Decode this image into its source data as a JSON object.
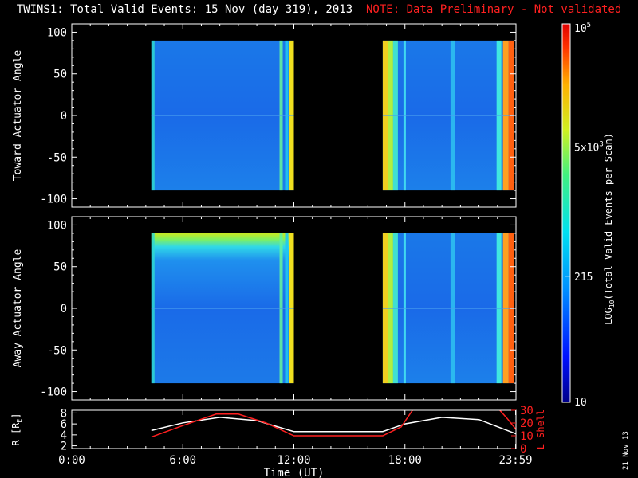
{
  "title": {
    "main": "TWINS1: Total Valid Events: 15 Nov (day 319), 2013",
    "note": "NOTE: Data Preliminary - Not validated"
  },
  "footer_date": "21 Nov 13",
  "chart_data": [
    {
      "type": "heatmap",
      "panel": "toward",
      "ylabel": "Toward Actuator Angle",
      "ylim": [
        -110,
        110
      ],
      "yticks": [
        -100,
        -50,
        0,
        50,
        100
      ],
      "xlim_hours": [
        0,
        24
      ],
      "data_intervals_hours": [
        [
          4.3,
          12.0
        ],
        [
          16.8,
          23.9
        ]
      ],
      "angle_range": [
        -90,
        90
      ],
      "grid": false
    },
    {
      "type": "heatmap",
      "panel": "away",
      "ylabel": "Away Actuator Angle",
      "ylim": [
        -110,
        110
      ],
      "yticks": [
        -100,
        -50,
        0,
        50,
        100
      ],
      "xlim_hours": [
        0,
        24
      ],
      "data_intervals_hours": [
        [
          4.3,
          12.0
        ],
        [
          16.8,
          23.9
        ]
      ],
      "angle_range": [
        -90,
        90
      ],
      "grid": false
    },
    {
      "type": "line",
      "panel": "orbit",
      "ylabel_left": "R [R",
      "ylabel_left_sub": "E",
      "ylabel_left_end": "]",
      "ylabel_right": "L Shell",
      "ylim_left": [
        1.5,
        8.5
      ],
      "yticks_left": [
        2,
        4,
        6,
        8
      ],
      "ylim_right": [
        0,
        30
      ],
      "yticks_right": [
        0,
        10,
        20,
        30
      ],
      "xlabel": "Time (UT)",
      "xtick_hours": [
        0,
        6,
        12,
        18,
        23.98
      ],
      "xtick_labels": [
        "0:00",
        "6:00",
        "12:00",
        "18:00",
        "23:59"
      ],
      "series": [
        {
          "color": "#ffffff",
          "axis": "left",
          "x": [
            4.3,
            6.0,
            8.0,
            10.0,
            12.0,
            16.8,
            18.0,
            20.0,
            22.0,
            24.0
          ],
          "y": [
            4.8,
            6.2,
            7.2,
            6.6,
            4.6,
            4.6,
            6.0,
            7.2,
            6.8,
            4.2
          ]
        },
        {
          "color": "#ff2020",
          "axis": "right",
          "x": [
            4.3,
            6.0,
            7.8,
            9.0,
            10.5,
            12.0,
            16.8,
            17.8,
            18.5,
            23.0,
            23.5,
            24.0
          ],
          "y": [
            9,
            18,
            27,
            27,
            20,
            10,
            10,
            17,
            32,
            32,
            24,
            15
          ]
        }
      ]
    }
  ],
  "colorbar": {
    "label": "LOG",
    "label_sub": "10",
    "label_rest": "(Total Valid Events per Scan)",
    "scale": "log",
    "range": [
      10,
      100000
    ],
    "ticks": [
      {
        "value": 10,
        "label": "10"
      },
      {
        "value": 215,
        "label": "215"
      },
      {
        "value": 5000,
        "label": "5x10",
        "sup": "3"
      },
      {
        "value": 100000,
        "label": "10",
        "sup": "5"
      }
    ]
  }
}
